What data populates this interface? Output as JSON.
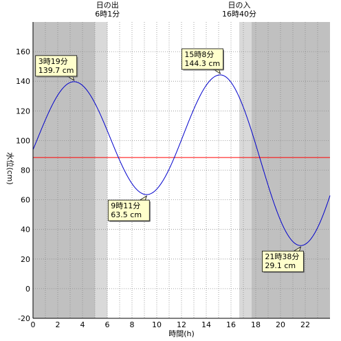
{
  "chart_data": {
    "type": "line",
    "xlabel": "時間(h)",
    "ylabel": "水位(cm)",
    "xlim": [
      0,
      24
    ],
    "ylim": [
      -20,
      180
    ],
    "x_ticks": [
      0,
      2,
      4,
      6,
      8,
      10,
      12,
      14,
      16,
      18,
      20,
      22
    ],
    "y_ticks": [
      -20,
      0,
      20,
      40,
      60,
      80,
      100,
      120,
      140,
      160
    ],
    "grid": true,
    "reference_line": {
      "y": 88.5,
      "color": "#ff0000"
    },
    "series_color": "#0000cc",
    "extrema": [
      {
        "time": "3時19分",
        "level": "139.7 cm",
        "x": 3.317,
        "y": 139.7
      },
      {
        "time": "9時11分",
        "level": "63.5 cm",
        "x": 9.183,
        "y": 63.5
      },
      {
        "time": "15時8分",
        "level": "144.3 cm",
        "x": 15.133,
        "y": 144.3
      },
      {
        "time": "21時38分",
        "level": "29.1 cm",
        "x": 21.633,
        "y": 29.1
      }
    ],
    "start": {
      "x": 0,
      "y": 88.5
    },
    "end": {
      "x": 24,
      "y": 66
    },
    "sunrise": {
      "label": "日の出",
      "time": "6時1分",
      "x": 6.017
    },
    "sunset": {
      "label": "日の入",
      "time": "16時40分",
      "x": 16.667
    },
    "twilight_hours": 1.0
  }
}
